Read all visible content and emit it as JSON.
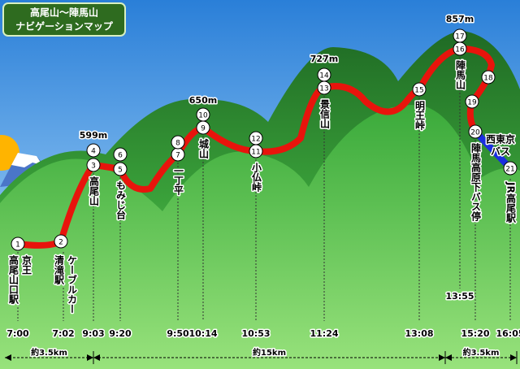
{
  "title": {
    "lines": [
      "高尾山～陣馬山",
      "ナビゲーションマップ"
    ]
  },
  "markers": [
    "1",
    "2",
    "3",
    "4",
    "5",
    "6",
    "7",
    "8",
    "9",
    "10",
    "11",
    "12",
    "13",
    "14",
    "15",
    "16",
    "17",
    "18",
    "19",
    "20",
    "21"
  ],
  "elevations": [
    "599m",
    "650m",
    "727m",
    "857m"
  ],
  "stops": [
    {
      "name": "高尾山口駅",
      "note": "京王",
      "time": "7:00"
    },
    {
      "name": "清滝駅",
      "note": "ケーブルカー",
      "time": "7:02"
    },
    {
      "name": "高尾山",
      "time": "9:03"
    },
    {
      "name": "もみじ台",
      "time": "9:20"
    },
    {
      "name": "一丁平",
      "time": "9:50"
    },
    {
      "name": "城山",
      "time": "10:14"
    },
    {
      "name": "小仏峠",
      "time": "10:53"
    },
    {
      "name": "景信山",
      "time": "11:24"
    },
    {
      "name": "明王峠",
      "time": "13:08"
    },
    {
      "name": "陣馬山",
      "time": "13:55"
    },
    {
      "name": "陣馬高原下バス停",
      "time": "15:20"
    },
    {
      "name": "JR高尾駅",
      "time": "16:05"
    }
  ],
  "bus_label": [
    "西東京",
    "バス"
  ],
  "distances": [
    "約3.5km",
    "約15km",
    "約3.5km"
  ]
}
